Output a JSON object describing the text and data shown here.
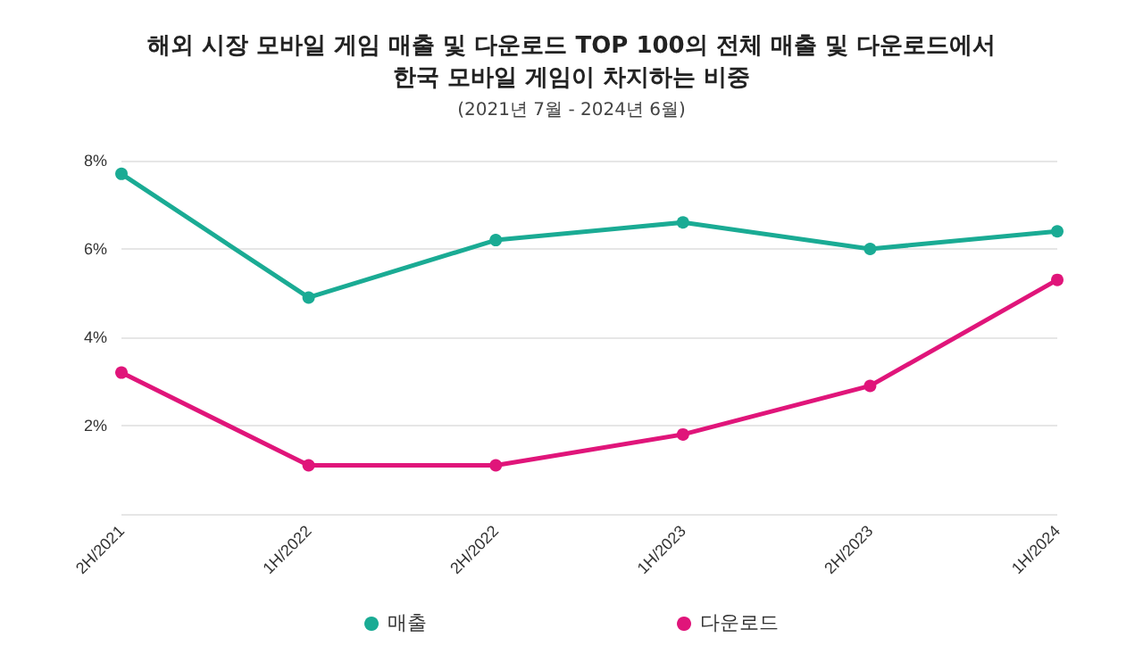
{
  "chart_data": {
    "type": "line",
    "title": "해외 시장 모바일 게임 매출 및 다운로드 TOP 100의 전체 매출 및 다운로드에서\n한국 모바일 게임이 차지하는 비중",
    "subtitle": "(2021년 7월 - 2024년 6월)",
    "categories": [
      "2H/2021",
      "1H/2022",
      "2H/2022",
      "1H/2023",
      "2H/2023",
      "1H/2024"
    ],
    "series": [
      {
        "name": "매출",
        "color": "#1aab94",
        "values": [
          7.7,
          4.9,
          6.2,
          6.6,
          6.0,
          6.4
        ]
      },
      {
        "name": "다운로드",
        "color": "#e0157a",
        "values": [
          3.2,
          1.1,
          1.1,
          1.8,
          2.9,
          5.3
        ]
      }
    ],
    "ylim": [
      0,
      8
    ],
    "yticks": [
      {
        "value": 0,
        "label": null
      },
      {
        "value": 2,
        "label": "2%"
      },
      {
        "value": 4,
        "label": "4%"
      },
      {
        "value": 6,
        "label": "6%"
      },
      {
        "value": 8,
        "label": "8%"
      }
    ],
    "grid": "y",
    "legend": "bottom",
    "marker": "circle",
    "line_style": "solid"
  }
}
